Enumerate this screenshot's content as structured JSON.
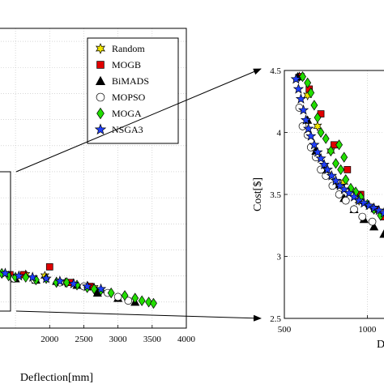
{
  "chart_data": [
    {
      "type": "scatter",
      "xlabel": "Deflection[mm]",
      "ylabel": "",
      "xlim": [
        1250,
        4000
      ],
      "ylim": [
        0,
        11.5
      ],
      "x_ticks": [
        2000,
        2500,
        3000,
        3500,
        4000
      ],
      "x_tick_labels": [
        "2000",
        "2500",
        "3000",
        "3500",
        "4000"
      ],
      "grid": true,
      "legend_position": "top-right",
      "series": [
        {
          "name": "Random",
          "color": "#f2e600",
          "marker": "hexstar",
          "points": [
            [
              1460,
              1.95
            ],
            [
              1650,
              2.05
            ],
            [
              1930,
              2.0
            ],
            [
              2230,
              1.75
            ],
            [
              2560,
              1.6
            ],
            [
              2650,
              1.55
            ]
          ]
        },
        {
          "name": "MOGB",
          "color": "#e00000",
          "marker": "square",
          "points": [
            [
              1420,
              2.05
            ],
            [
              1620,
              2.05
            ],
            [
              2000,
              2.35
            ],
            [
              2310,
              1.75
            ],
            [
              2590,
              1.6
            ],
            [
              2700,
              1.4
            ]
          ]
        },
        {
          "name": "BiMADS",
          "color": "#000000",
          "marker": "triangle",
          "points": [
            [
              1500,
              1.9
            ],
            [
              1800,
              1.85
            ],
            [
              2100,
              1.8
            ],
            [
              2400,
              1.65
            ],
            [
              2700,
              1.35
            ],
            [
              3000,
              1.15
            ],
            [
              3250,
              1.0
            ]
          ]
        },
        {
          "name": "MOPSO",
          "color": "#ffffff",
          "marker": "circle",
          "points": [
            [
              1480,
              1.9
            ],
            [
              1780,
              1.85
            ],
            [
              2150,
              1.75
            ],
            [
              2500,
              1.6
            ],
            [
              2850,
              1.35
            ],
            [
              3000,
              1.2
            ],
            [
              3150,
              1.05
            ]
          ]
        },
        {
          "name": "MOGA",
          "color": "#22dd00",
          "marker": "diamond",
          "points": [
            [
              1300,
              2.1
            ],
            [
              1400,
              2.0
            ],
            [
              1500,
              1.95
            ],
            [
              1650,
              1.95
            ],
            [
              1800,
              1.85
            ],
            [
              1950,
              1.9
            ],
            [
              2100,
              1.75
            ],
            [
              2250,
              1.75
            ],
            [
              2400,
              1.65
            ],
            [
              2550,
              1.55
            ],
            [
              2650,
              1.5
            ],
            [
              2750,
              1.45
            ],
            [
              2900,
              1.35
            ],
            [
              3100,
              1.25
            ],
            [
              3250,
              1.15
            ],
            [
              3350,
              1.05
            ],
            [
              3450,
              1.0
            ],
            [
              3520,
              0.95
            ]
          ]
        },
        {
          "name": "NSGA3",
          "color": "#1f3fff",
          "marker": "star5",
          "points": [
            [
              1350,
              2.1
            ],
            [
              1550,
              2.0
            ],
            [
              1750,
              1.95
            ],
            [
              1950,
              1.9
            ],
            [
              2150,
              1.8
            ],
            [
              2350,
              1.7
            ],
            [
              2550,
              1.6
            ],
            [
              2750,
              1.5
            ]
          ]
        }
      ]
    },
    {
      "type": "scatter",
      "xlabel": "D",
      "ylabel": "Cost[$]",
      "xlim": [
        500,
        1120
      ],
      "ylim": [
        2.5,
        4.5
      ],
      "x_ticks": [
        500,
        1000
      ],
      "x_tick_labels": [
        "500",
        "1000"
      ],
      "y_ticks": [
        2.5,
        3,
        3.5,
        4,
        4.5
      ],
      "y_tick_labels": [
        "2.5",
        "3",
        "3.5",
        "4",
        "4.5"
      ],
      "grid": true,
      "series": [
        {
          "name": "Random",
          "color": "#f2e600",
          "marker": "hexstar",
          "points": [
            [
              590,
              4.45
            ],
            [
              640,
              4.3
            ],
            [
              700,
              4.05
            ],
            [
              780,
              3.85
            ],
            [
              860,
              3.6
            ],
            [
              950,
              3.45
            ]
          ]
        },
        {
          "name": "MOGB",
          "color": "#e00000",
          "marker": "square",
          "points": [
            [
              600,
              4.45
            ],
            [
              650,
              4.35
            ],
            [
              720,
              4.15
            ],
            [
              800,
              3.9
            ],
            [
              880,
              3.7
            ],
            [
              960,
              3.5
            ],
            [
              1050,
              3.38
            ],
            [
              1100,
              3.32
            ]
          ]
        },
        {
          "name": "BiMADS",
          "color": "#000000",
          "marker": "triangle",
          "points": [
            [
              580,
              4.45
            ],
            [
              640,
              4.1
            ],
            [
              690,
              3.85
            ],
            [
              740,
              3.7
            ],
            [
              800,
              3.58
            ],
            [
              860,
              3.47
            ],
            [
              920,
              3.38
            ],
            [
              980,
              3.3
            ],
            [
              1040,
              3.24
            ],
            [
              1100,
              3.18
            ]
          ]
        },
        {
          "name": "MOPSO",
          "color": "#ffffff",
          "marker": "circle",
          "points": [
            [
              590,
              4.2
            ],
            [
              610,
              4.05
            ],
            [
              640,
              3.98
            ],
            [
              660,
              3.88
            ],
            [
              690,
              3.8
            ],
            [
              720,
              3.7
            ],
            [
              750,
              3.65
            ],
            [
              790,
              3.57
            ],
            [
              830,
              3.5
            ],
            [
              870,
              3.45
            ],
            [
              920,
              3.38
            ],
            [
              970,
              3.32
            ],
            [
              1030,
              3.28
            ]
          ]
        },
        {
          "name": "MOGA",
          "color": "#22dd00",
          "marker": "diamond",
          "points": [
            [
              610,
              4.45
            ],
            [
              640,
              4.4
            ],
            [
              660,
              4.32
            ],
            [
              680,
              4.22
            ],
            [
              700,
              4.12
            ],
            [
              720,
              4.0
            ],
            [
              750,
              3.95
            ],
            [
              780,
              3.85
            ],
            [
              810,
              3.75
            ],
            [
              840,
              3.7
            ],
            [
              870,
              3.62
            ],
            [
              900,
              3.55
            ],
            [
              930,
              3.52
            ],
            [
              960,
              3.48
            ],
            [
              1000,
              3.42
            ],
            [
              1040,
              3.38
            ],
            [
              1080,
              3.33
            ],
            [
              860,
              3.8
            ],
            [
              830,
              3.9
            ]
          ]
        },
        {
          "name": "NSGA3",
          "color": "#1f3fff",
          "marker": "star5",
          "points": [
            [
              570,
              4.43
            ],
            [
              585,
              4.35
            ],
            [
              600,
              4.27
            ],
            [
              615,
              4.18
            ],
            [
              630,
              4.1
            ],
            [
              645,
              4.03
            ],
            [
              660,
              3.97
            ],
            [
              680,
              3.9
            ],
            [
              700,
              3.84
            ],
            [
              720,
              3.79
            ],
            [
              740,
              3.74
            ],
            [
              760,
              3.7
            ],
            [
              785,
              3.65
            ],
            [
              810,
              3.61
            ],
            [
              835,
              3.57
            ],
            [
              860,
              3.54
            ],
            [
              890,
              3.51
            ],
            [
              920,
              3.48
            ],
            [
              950,
              3.45
            ],
            [
              980,
              3.43
            ],
            [
              1010,
              3.41
            ],
            [
              1040,
              3.39
            ],
            [
              1070,
              3.37
            ],
            [
              1100,
              3.35
            ]
          ]
        }
      ]
    }
  ]
}
